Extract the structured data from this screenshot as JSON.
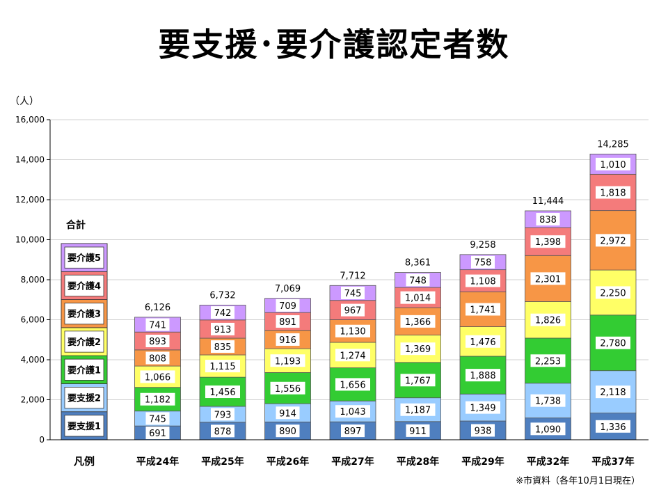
{
  "page": {
    "title": "要支援･要介護認定者数",
    "note": "※市資料（各年10月1日現在）"
  },
  "chart_data": {
    "type": "bar",
    "stacked": true,
    "ylabel": "（人）",
    "ylim": [
      0,
      16000
    ],
    "yticks": [
      "0",
      "2,000",
      "4,000",
      "6,000",
      "8,000",
      "10,000",
      "12,000",
      "14,000",
      "16,000"
    ],
    "grid": true,
    "legend_position": "left, as first column",
    "legend_label": "凡例",
    "legend_title": "合計",
    "categories": [
      "平成24年",
      "平成25年",
      "平成26年",
      "平成27年",
      "平成28年",
      "平成29年",
      "平成32年",
      "平成37年"
    ],
    "totals": [
      6126,
      6732,
      7069,
      7712,
      8361,
      9258,
      11444,
      14285
    ],
    "total_labels": [
      "6,126",
      "6,732",
      "7,069",
      "7,712",
      "8,361",
      "9,258",
      "11,444",
      "14,285"
    ],
    "series": [
      {
        "name": "要支援1",
        "color": "#4f7fbf",
        "values": [
          691,
          878,
          890,
          897,
          911,
          938,
          1090,
          1336
        ],
        "labels": [
          "691",
          "878",
          "890",
          "897",
          "911",
          "938",
          "1,090",
          "1,336"
        ]
      },
      {
        "name": "要支援2",
        "color": "#99ccff",
        "values": [
          745,
          793,
          914,
          1043,
          1187,
          1349,
          1738,
          2118
        ],
        "labels": [
          "745",
          "793",
          "914",
          "1,043",
          "1,187",
          "1,349",
          "1,738",
          "2,118"
        ]
      },
      {
        "name": "要介護1",
        "color": "#33cc33",
        "values": [
          1182,
          1456,
          1556,
          1656,
          1767,
          1888,
          2253,
          2780
        ],
        "labels": [
          "1,182",
          "1,456",
          "1,556",
          "1,656",
          "1,767",
          "1,888",
          "2,253",
          "2,780"
        ]
      },
      {
        "name": "要介護2",
        "color": "#ffff66",
        "values": [
          1066,
          1115,
          1193,
          1274,
          1369,
          1476,
          1826,
          2250
        ],
        "labels": [
          "1,066",
          "1,115",
          "1,193",
          "1,274",
          "1,369",
          "1,476",
          "1,826",
          "2,250"
        ]
      },
      {
        "name": "要介護3",
        "color": "#f79646",
        "values": [
          808,
          835,
          916,
          1130,
          1366,
          1741,
          2301,
          2972
        ],
        "labels": [
          "808",
          "835",
          "916",
          "1,130",
          "1,366",
          "1,741",
          "2,301",
          "2,972"
        ]
      },
      {
        "name": "要介護4",
        "color": "#f47b7b",
        "values": [
          893,
          913,
          891,
          967,
          1014,
          1108,
          1398,
          1818
        ],
        "labels": [
          "893",
          "913",
          "891",
          "967",
          "1,014",
          "1,108",
          "1,398",
          "1,818"
        ]
      },
      {
        "name": "要介護5",
        "color": "#cc99ff",
        "values": [
          741,
          742,
          709,
          745,
          748,
          758,
          838,
          1010
        ],
        "labels": [
          "741",
          "742",
          "709",
          "745",
          "748",
          "758",
          "838",
          "1,010"
        ]
      }
    ]
  }
}
